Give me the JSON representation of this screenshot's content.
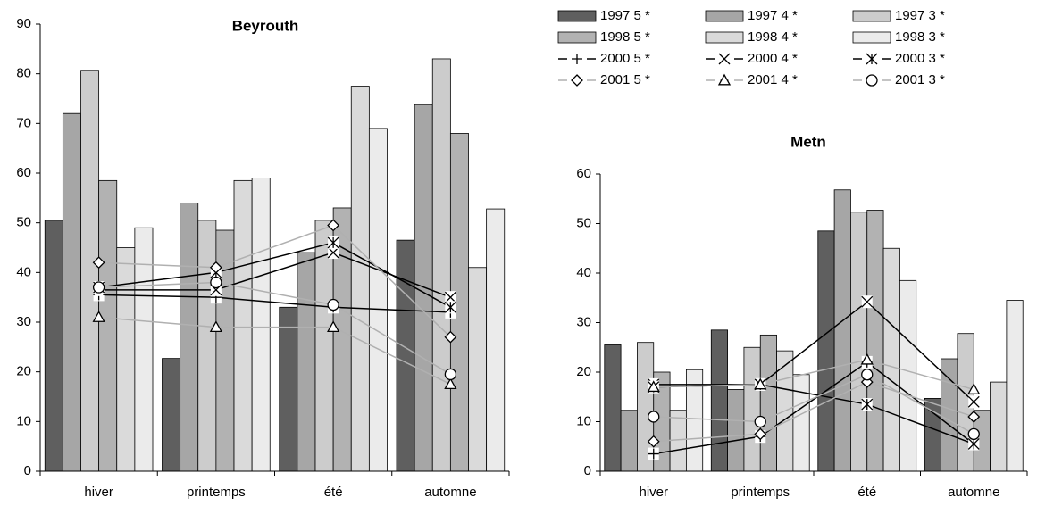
{
  "chart_data": [
    {
      "type": "bar",
      "title": "Beyrouth",
      "categories": [
        "hiver",
        "printemps",
        "été",
        "automne"
      ],
      "ylim": [
        0,
        90
      ],
      "yticks": [
        0,
        10,
        20,
        30,
        40,
        50,
        60,
        70,
        80,
        90
      ],
      "series": [
        {
          "name": "1997 5 *",
          "type": "bar",
          "color": "#5f5f5f",
          "values": [
            50.5,
            22.7,
            33,
            46.5
          ]
        },
        {
          "name": "1997 4 *",
          "type": "bar",
          "color": "#a6a6a6",
          "values": [
            72,
            54,
            44,
            73.8
          ]
        },
        {
          "name": "1997 3 *",
          "type": "bar",
          "color": "#cccccc",
          "values": [
            80.7,
            50.5,
            50.5,
            83
          ]
        },
        {
          "name": "1998 5 *",
          "type": "bar",
          "color": "#b2b2b2",
          "values": [
            58.5,
            48.5,
            53,
            68
          ]
        },
        {
          "name": "1998 4 *",
          "type": "bar",
          "color": "#dadada",
          "values": [
            45,
            58.5,
            77.5,
            41
          ]
        },
        {
          "name": "1998 3 *",
          "type": "bar",
          "color": "#ebebeb",
          "values": [
            49,
            59,
            69,
            52.8
          ]
        },
        {
          "name": "2000 5 *",
          "type": "line",
          "color": "#000000",
          "marker": "plus",
          "values": [
            35.5,
            35,
            33,
            32
          ]
        },
        {
          "name": "2000 4 *",
          "type": "line",
          "color": "#000000",
          "marker": "x",
          "values": [
            36.5,
            36.5,
            44,
            35
          ]
        },
        {
          "name": "2000 3 *",
          "type": "line",
          "color": "#000000",
          "marker": "asterisk",
          "values": [
            37,
            40,
            46,
            33
          ]
        },
        {
          "name": "2001 5 *",
          "type": "line",
          "color": "#b0b0b0",
          "marker": "diamond",
          "values": [
            42,
            41,
            49.5,
            27
          ]
        },
        {
          "name": "2001 4 *",
          "type": "line",
          "color": "#b0b0b0",
          "marker": "triangle",
          "values": [
            31,
            29,
            29,
            17.5
          ]
        },
        {
          "name": "2001 3 *",
          "type": "line",
          "color": "#b0b0b0",
          "marker": "circle",
          "values": [
            37,
            38,
            33.5,
            19.5
          ]
        }
      ]
    },
    {
      "type": "bar",
      "title": "Metn",
      "categories": [
        "hiver",
        "printemps",
        "été",
        "automne"
      ],
      "ylim": [
        0,
        60
      ],
      "yticks": [
        0,
        10,
        20,
        30,
        40,
        50,
        60
      ],
      "series": [
        {
          "type": "bar",
          "color": "#5f5f5f",
          "values": [
            25.5,
            28.5,
            48.5,
            14.7
          ]
        },
        {
          "type": "bar",
          "color": "#a6a6a6",
          "values": [
            12.3,
            16.5,
            56.8,
            22.7
          ]
        },
        {
          "type": "bar",
          "color": "#cccccc",
          "values": [
            26,
            25,
            52.3,
            27.8
          ]
        },
        {
          "type": "bar",
          "color": "#b2b2b2",
          "values": [
            20,
            27.5,
            52.7,
            12.3
          ]
        },
        {
          "type": "bar",
          "color": "#dadada",
          "values": [
            12.3,
            24.3,
            45,
            18
          ]
        },
        {
          "type": "bar",
          "color": "#ebebeb",
          "values": [
            20.5,
            19.5,
            38.5,
            34.5
          ]
        },
        {
          "type": "line",
          "color": "#000000",
          "marker": "plus",
          "values": [
            3.5,
            7,
            22,
            5.5
          ]
        },
        {
          "type": "line",
          "color": "#000000",
          "marker": "x",
          "values": [
            17.5,
            17.5,
            34.2,
            14
          ]
        },
        {
          "type": "line",
          "color": "#000000",
          "marker": "asterisk",
          "values": [
            17,
            17.5,
            13.5,
            5.5
          ]
        },
        {
          "type": "line",
          "color": "#b0b0b0",
          "marker": "diamond",
          "values": [
            6,
            7.5,
            18,
            11
          ]
        },
        {
          "type": "line",
          "color": "#b0b0b0",
          "marker": "triangle",
          "values": [
            17,
            17.5,
            22.5,
            16.5
          ]
        },
        {
          "type": "line",
          "color": "#b0b0b0",
          "marker": "circle",
          "values": [
            11,
            10,
            19.5,
            7.5
          ]
        }
      ]
    }
  ]
}
